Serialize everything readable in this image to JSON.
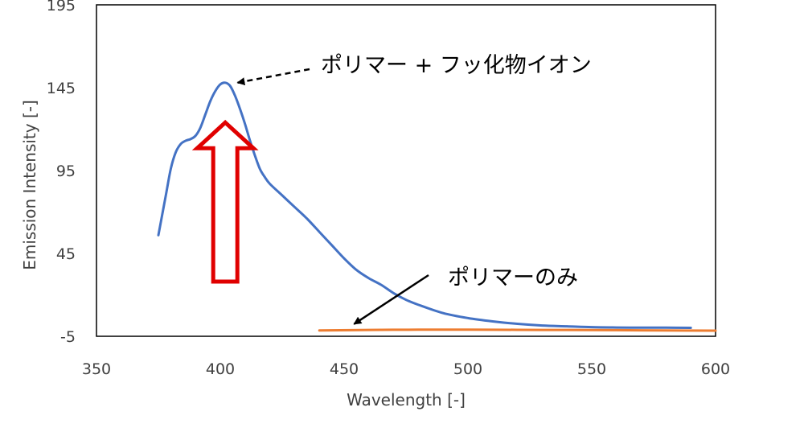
{
  "chart_data": {
    "type": "line",
    "xlabel": "Wavelength [-]",
    "ylabel": "Emission Intensity [-]",
    "xlim": [
      350,
      600
    ],
    "ylim": [
      -5,
      195
    ],
    "x_ticks": [
      350,
      400,
      450,
      500,
      550,
      600
    ],
    "y_ticks": [
      -5,
      45,
      95,
      145,
      195
    ],
    "grid": false,
    "legend": "none",
    "series": [
      {
        "color": "#4472C4",
        "x": [
          375,
          378,
          380,
          382,
          384,
          386,
          388,
          390,
          392,
          394,
          396,
          398,
          400,
          402,
          404,
          406,
          408,
          410,
          412,
          414,
          416,
          418,
          420,
          425,
          430,
          435,
          440,
          445,
          450,
          455,
          460,
          465,
          470,
          475,
          480,
          490,
          500,
          510,
          520,
          530,
          540,
          550,
          560,
          570,
          580,
          590
        ],
        "y": [
          56,
          80,
          96,
          106,
          111,
          113,
          114,
          116,
          121,
          129,
          137,
          143,
          147,
          148,
          146,
          140,
          132,
          123,
          113,
          104,
          96,
          91,
          87,
          80,
          73,
          66,
          58,
          50,
          42,
          35,
          30,
          26,
          21,
          17,
          14,
          9,
          6,
          4,
          2.5,
          1.5,
          1,
          0.5,
          0.3,
          0.2,
          0.2,
          0.1
        ]
      },
      {
        "color": "#ED7D31",
        "x": [
          440,
          460,
          480,
          500,
          520,
          540,
          560,
          580,
          600
        ],
        "y": [
          -1.5,
          -1.2,
          -1,
          -1,
          -1.1,
          -1.2,
          -1.3,
          -1.5,
          -1.6
        ]
      }
    ],
    "annotations": [
      {
        "text": "ポリマー + フッ化物イオン",
        "points_to": [
          405,
          148
        ],
        "arrow_style": "dashed"
      },
      {
        "text": "ポリマーのみ",
        "points_to": [
          454,
          -1.5
        ],
        "arrow_style": "solid"
      }
    ],
    "highlight_arrow": {
      "direction": "up",
      "color": "#E00000",
      "x": 402,
      "y_from": 28,
      "y_to": 124
    }
  }
}
